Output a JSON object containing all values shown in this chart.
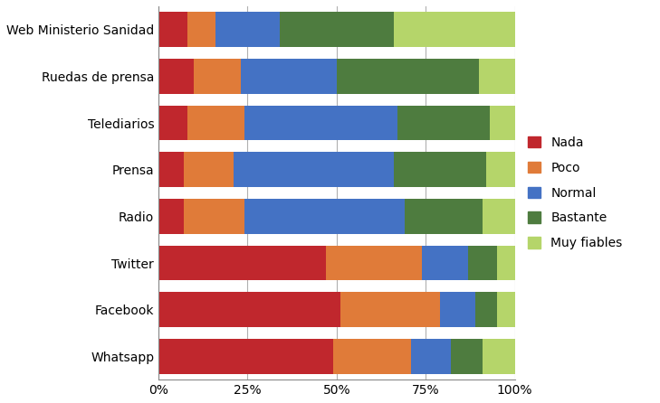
{
  "categories": [
    "Whatsapp",
    "Facebook",
    "Twitter",
    "Radio",
    "Prensa",
    "Telediarios",
    "Ruedas de prensa",
    "Web Ministerio Sanidad"
  ],
  "series": {
    "Nada": [
      49,
      51,
      47,
      7,
      7,
      8,
      10,
      8
    ],
    "Poco": [
      22,
      28,
      27,
      17,
      14,
      16,
      13,
      8
    ],
    "Normal": [
      11,
      10,
      13,
      45,
      45,
      43,
      27,
      18
    ],
    "Bastante": [
      9,
      6,
      8,
      22,
      26,
      26,
      40,
      32
    ],
    "Muy fiables": [
      9,
      5,
      5,
      9,
      8,
      7,
      10,
      34
    ]
  },
  "colors": {
    "Nada": "#c0272d",
    "Poco": "#e07b39",
    "Normal": "#4472c4",
    "Bastante": "#4e7c3f",
    "Muy fiables": "#b5d56a"
  },
  "legend_labels": [
    "Nada",
    "Poco",
    "Normal",
    "Bastante",
    "Muy fiables"
  ],
  "xlim": [
    0,
    100
  ],
  "xticks": [
    0,
    25,
    50,
    75,
    100
  ],
  "xticklabels": [
    "0%",
    "25%",
    "50%",
    "75%",
    "100%"
  ],
  "background_color": "#ffffff",
  "grid_color": "#b0b0b0",
  "bar_height": 0.75,
  "figsize": [
    7.29,
    4.46
  ],
  "dpi": 100
}
